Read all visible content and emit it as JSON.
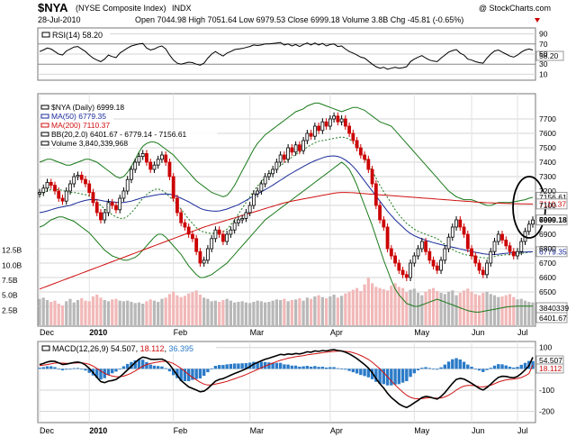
{
  "header": {
    "symbol": "$NYA",
    "name": "(NYSE Composite Index)",
    "exchange": "INDX",
    "date": "28-Jul-2010",
    "ohlc": "Open 7044.98  High 7051.64  Low 6979.53  Close 6999.18  Volume 3.8B  Chg -45.81 (-0.65%)",
    "watermark": "@ StockCharts.com"
  },
  "rsi_panel": {
    "legend": "RSI(14) 58.20",
    "last_label": "58.20",
    "axis_ticks": [
      "90",
      "70",
      "50",
      "30",
      "10"
    ]
  },
  "price_panel": {
    "legend": [
      {
        "text": "$NYA (Daily) 6999.18",
        "color": "#000000"
      },
      {
        "text": "MA(50) 6779.35",
        "color": "#1a2a9a"
      },
      {
        "text": "MA(200) 7110.37",
        "color": "#d01010"
      },
      {
        "text": "BB(20,2.0) 6401.67 - 6779.14 - 7156.61",
        "color": "#000000"
      },
      {
        "text": "Volume 3,840,339,968",
        "color": "#000000"
      }
    ],
    "right_labels": [
      {
        "text": "7156.61",
        "value": 7156.61,
        "bg": "#ffffff",
        "fg": "#000000"
      },
      {
        "text": "7110.37",
        "value": 7110.37,
        "bg": "#ffffff",
        "fg": "#d01010"
      },
      {
        "text": "6999.18",
        "value": 6999.18,
        "bg": "#ffffff",
        "fg": "#000000",
        "bold": true
      },
      {
        "text": "6779.35",
        "value": 6779.35,
        "bg": "#ffffff",
        "fg": "#1a2a9a"
      }
    ],
    "volume_labels": [
      "3840339",
      "6401.67"
    ],
    "left_volume_ticks": [
      "12.5B",
      "10.0B",
      "7.5B",
      "5.0B",
      "2.5B"
    ],
    "price_ticks": [
      "7700",
      "7600",
      "7500",
      "7400",
      "7300",
      "7200",
      "7100",
      "7000",
      "6900",
      "6800",
      "6700",
      "6600",
      "6500",
      "6400"
    ]
  },
  "macd_panel": {
    "legend_prefix": "MACD(12,26,9)",
    "macd_value": "54.507",
    "signal_value": "18.112",
    "hist_value": "36.395",
    "right_labels": [
      "54.507",
      "18.112"
    ],
    "axis_ticks": [
      "100",
      "0",
      "-100",
      "-200"
    ]
  },
  "x_axis": {
    "price_months": [
      "Dec",
      "2010",
      "Feb",
      "Mar",
      "Apr",
      "May",
      "Jun",
      "Jul"
    ],
    "macd_months": [
      "Dec",
      "2010",
      "Feb",
      "Mar",
      "Apr",
      "May",
      "Jun",
      "Jul"
    ]
  },
  "chart_data": {
    "type": "candlestick",
    "price_range": [
      6350,
      7800
    ],
    "price_close": [
      7190,
      7220,
      7260,
      7240,
      7200,
      7150,
      7130,
      7200,
      7250,
      7300,
      7310,
      7280,
      7250,
      7190,
      7120,
      7050,
      7000,
      7050,
      7120,
      7100,
      7070,
      7150,
      7200,
      7280,
      7350,
      7400,
      7440,
      7460,
      7400,
      7350,
      7380,
      7420,
      7450,
      7400,
      7300,
      7150,
      7050,
      6980,
      6950,
      6900,
      6870,
      6780,
      6700,
      6720,
      6800,
      6870,
      6930,
      6900,
      6850,
      6900,
      6930,
      6980,
      7000,
      7010,
      7050,
      7100,
      7180,
      7200,
      7250,
      7300,
      7320,
      7350,
      7400,
      7450,
      7420,
      7500,
      7470,
      7520,
      7480,
      7550,
      7600,
      7580,
      7650,
      7620,
      7680,
      7650,
      7700,
      7720,
      7680,
      7700,
      7650,
      7600,
      7550,
      7500,
      7450,
      7420,
      7350,
      7250,
      7100,
      7000,
      6950,
      6800,
      6750,
      6700,
      6650,
      6620,
      6600,
      6700,
      6750,
      6800,
      6850,
      6780,
      6720,
      6680,
      6650,
      6720,
      6800,
      6880,
      6950,
      7000,
      6950,
      6900,
      6800,
      6750,
      6700,
      6650,
      6620,
      6700,
      6780,
      6850,
      6900,
      6860,
      6820,
      6780,
      6750,
      6780,
      6850,
      6920,
      6970,
      6999
    ],
    "ma50": [
      7050,
      7055,
      7062,
      7070,
      7078,
      7085,
      7090,
      7095,
      7100,
      7110,
      7120,
      7128,
      7135,
      7140,
      7142,
      7140,
      7135,
      7130,
      7128,
      7125,
      7122,
      7120,
      7120,
      7125,
      7130,
      7138,
      7146,
      7155,
      7160,
      7165,
      7170,
      7175,
      7178,
      7180,
      7178,
      7172,
      7162,
      7150,
      7138,
      7125,
      7110,
      7095,
      7080,
      7070,
      7065,
      7062,
      7060,
      7062,
      7068,
      7075,
      7085,
      7095,
      7105,
      7120,
      7135,
      7150,
      7165,
      7180,
      7195,
      7210,
      7225,
      7240,
      7258,
      7275,
      7292,
      7310,
      7325,
      7340,
      7355,
      7370,
      7385,
      7398,
      7410,
      7420,
      7430,
      7438,
      7442,
      7444,
      7440,
      7430,
      7415,
      7395,
      7370,
      7340,
      7305,
      7270,
      7235,
      7200,
      7165,
      7130,
      7095,
      7060,
      7030,
      7000,
      6975,
      6950,
      6925,
      6905,
      6890,
      6878,
      6868,
      6858,
      6850,
      6842,
      6835,
      6828,
      6822,
      6816,
      6810,
      6805,
      6798,
      6792,
      6786,
      6780,
      6775,
      6770,
      6765,
      6762,
      6760,
      6760,
      6762,
      6765,
      6768,
      6770,
      6772,
      6774,
      6776,
      6777,
      6778,
      6779
    ],
    "ma200": [
      6520,
      6530,
      6540,
      6550,
      6560,
      6570,
      6580,
      6590,
      6600,
      6610,
      6620,
      6630,
      6640,
      6650,
      6660,
      6670,
      6680,
      6690,
      6700,
      6710,
      6720,
      6730,
      6740,
      6750,
      6760,
      6770,
      6780,
      6790,
      6800,
      6810,
      6820,
      6830,
      6840,
      6850,
      6860,
      6870,
      6880,
      6890,
      6900,
      6910,
      6920,
      6930,
      6940,
      6950,
      6958,
      6966,
      6974,
      6982,
      6990,
      6998,
      7006,
      7014,
      7022,
      7030,
      7038,
      7046,
      7054,
      7062,
      7070,
      7078,
      7086,
      7094,
      7102,
      7110,
      7118,
      7124,
      7130,
      7135,
      7140,
      7145,
      7150,
      7155,
      7160,
      7165,
      7170,
      7175,
      7180,
      7185,
      7188,
      7190,
      7190,
      7189,
      7188,
      7186,
      7184,
      7182,
      7180,
      7178,
      7176,
      7174,
      7172,
      7170,
      7168,
      7166,
      7164,
      7162,
      7160,
      7158,
      7156,
      7154,
      7152,
      7150,
      7148,
      7146,
      7144,
      7142,
      7140,
      7138,
      7136,
      7134,
      7132,
      7130,
      7128,
      7126,
      7124,
      7122,
      7120,
      7119,
      7118,
      7117,
      7116,
      7115,
      7114,
      7113,
      7112,
      7112,
      7111,
      7111,
      7110,
      7110
    ],
    "bb_upper": [
      7400,
      7410,
      7420,
      7420,
      7410,
      7400,
      7390,
      7380,
      7380,
      7390,
      7400,
      7410,
      7420,
      7420,
      7410,
      7400,
      7380,
      7360,
      7340,
      7320,
      7300,
      7290,
      7300,
      7330,
      7370,
      7420,
      7470,
      7510,
      7530,
      7540,
      7540,
      7530,
      7510,
      7490,
      7470,
      7450,
      7420,
      7390,
      7360,
      7330,
      7300,
      7270,
      7250,
      7230,
      7210,
      7190,
      7180,
      7170,
      7160,
      7170,
      7200,
      7240,
      7290,
      7340,
      7390,
      7440,
      7490,
      7530,
      7560,
      7590,
      7610,
      7630,
      7650,
      7670,
      7690,
      7710,
      7730,
      7750,
      7760,
      7770,
      7790,
      7800,
      7810,
      7810,
      7800,
      7790,
      7780,
      7770,
      7760,
      7750,
      7760,
      7770,
      7780,
      7780,
      7770,
      7760,
      7740,
      7720,
      7700,
      7680,
      7670,
      7660,
      7650,
      7620,
      7590,
      7560,
      7530,
      7500,
      7470,
      7440,
      7410,
      7380,
      7350,
      7320,
      7290,
      7260,
      7230,
      7200,
      7180,
      7160,
      7150,
      7140,
      7140,
      7140,
      7130,
      7120,
      7110,
      7100,
      7100,
      7110,
      7120,
      7120,
      7120,
      7120,
      7125,
      7130,
      7135,
      7140,
      7150,
      7156
    ],
    "bb_lower": [
      6950,
      6960,
      6980,
      7000,
      7010,
      7020,
      7020,
      7010,
      7000,
      6990,
      6970,
      6950,
      6930,
      6910,
      6880,
      6850,
      6820,
      6790,
      6770,
      6750,
      6740,
      6730,
      6720,
      6720,
      6730,
      6740,
      6760,
      6790,
      6820,
      6850,
      6880,
      6900,
      6900,
      6880,
      6850,
      6820,
      6790,
      6760,
      6720,
      6680,
      6650,
      6620,
      6600,
      6600,
      6610,
      6620,
      6640,
      6660,
      6680,
      6700,
      6730,
      6760,
      6790,
      6820,
      6850,
      6880,
      6910,
      6940,
      6970,
      7000,
      7020,
      7040,
      7060,
      7080,
      7100,
      7120,
      7140,
      7160,
      7180,
      7200,
      7220,
      7240,
      7260,
      7280,
      7300,
      7320,
      7340,
      7360,
      7380,
      7400,
      7380,
      7350,
      7300,
      7240,
      7170,
      7100,
      7030,
      6960,
      6880,
      6800,
      6720,
      6650,
      6580,
      6520,
      6480,
      6450,
      6420,
      6410,
      6400,
      6400,
      6410,
      6420,
      6430,
      6440,
      6450,
      6440,
      6430,
      6420,
      6410,
      6400,
      6390,
      6380,
      6370,
      6365,
      6360,
      6360,
      6365,
      6370,
      6375,
      6380,
      6385,
      6390,
      6395,
      6398,
      6400,
      6401,
      6401,
      6401,
      6401,
      6401
    ],
    "volume_range": [
      0,
      15
    ],
    "volume": [
      4.4,
      4.6,
      4.2,
      3.9,
      4.1,
      3.6,
      3.3,
      4.0,
      4.4,
      3.8,
      4.2,
      4.5,
      4.1,
      4.0,
      4.8,
      5.1,
      4.6,
      4.2,
      4.0,
      4.3,
      4.4,
      4.1,
      4.0,
      4.1,
      3.9,
      3.7,
      3.8,
      3.6,
      4.0,
      4.3,
      4.1,
      3.9,
      4.4,
      4.6,
      5.2,
      5.6,
      5.0,
      4.7,
      4.9,
      5.3,
      5.5,
      5.8,
      5.1,
      4.6,
      4.4,
      4.0,
      4.1,
      3.9,
      4.2,
      4.4,
      4.1,
      3.8,
      3.9,
      4.0,
      3.8,
      3.7,
      3.9,
      4.1,
      4.0,
      3.8,
      3.9,
      4.1,
      4.3,
      4.2,
      4.4,
      4.0,
      4.2,
      4.3,
      4.5,
      4.1,
      4.6,
      4.4,
      4.8,
      5.0,
      4.7,
      4.5,
      4.8,
      5.1,
      4.6,
      4.9,
      5.3,
      5.6,
      5.9,
      6.2,
      5.7,
      6.8,
      7.9,
      7.0,
      6.4,
      6.2,
      6.0,
      5.8,
      6.6,
      7.0,
      6.4,
      6.2,
      5.5,
      5.9,
      6.1,
      5.4,
      5.0,
      5.6,
      6.0,
      6.2,
      5.7,
      5.4,
      5.2,
      5.6,
      5.8,
      5.0,
      5.4,
      5.8,
      6.1,
      5.6,
      5.2,
      5.0,
      5.4,
      5.6,
      5.2,
      5.0,
      4.7,
      4.8,
      5.0,
      5.2,
      4.7,
      4.3,
      4.4,
      4.1,
      3.9,
      3.8
    ],
    "rsi_range": [
      0,
      100
    ],
    "rsi": [
      55,
      58,
      62,
      60,
      55,
      50,
      48,
      56,
      60,
      64,
      65,
      60,
      55,
      48,
      42,
      38,
      35,
      40,
      48,
      45,
      43,
      52,
      57,
      62,
      66,
      68,
      70,
      71,
      62,
      58,
      60,
      64,
      66,
      60,
      48,
      38,
      32,
      30,
      32,
      34,
      33,
      30,
      28,
      32,
      42,
      50,
      55,
      50,
      46,
      52,
      55,
      59,
      60,
      61,
      63,
      65,
      68,
      67,
      68,
      70,
      70,
      71,
      72,
      73,
      68,
      70,
      66,
      69,
      65,
      69,
      72,
      68,
      72,
      68,
      71,
      66,
      69,
      70,
      65,
      66,
      60,
      55,
      52,
      48,
      44,
      42,
      36,
      30,
      25,
      22,
      24,
      20,
      22,
      24,
      22,
      23,
      25,
      35,
      40,
      44,
      47,
      42,
      38,
      36,
      35,
      42,
      48,
      54,
      57,
      59,
      52,
      48,
      40,
      38,
      35,
      33,
      32,
      42,
      50,
      56,
      58,
      54,
      50,
      46,
      44,
      48,
      54,
      58,
      60,
      58
    ],
    "macd_range": [
      -240,
      120
    ],
    "macd": [
      20,
      25,
      32,
      36,
      35,
      28,
      20,
      22,
      26,
      30,
      32,
      28,
      18,
      2,
      -18,
      -40,
      -60,
      -65,
      -58,
      -55,
      -50,
      -38,
      -22,
      -5,
      12,
      30,
      45,
      55,
      52,
      45,
      44,
      45,
      46,
      38,
      20,
      -5,
      -30,
      -55,
      -70,
      -85,
      -92,
      -100,
      -108,
      -105,
      -92,
      -75,
      -58,
      -50,
      -46,
      -38,
      -30,
      -22,
      -15,
      -8,
      0,
      10,
      22,
      30,
      38,
      45,
      50,
      56,
      62,
      68,
      66,
      70,
      68,
      72,
      70,
      74,
      80,
      78,
      84,
      82,
      86,
      84,
      88,
      90,
      86,
      84,
      78,
      70,
      60,
      48,
      34,
      20,
      4,
      -18,
      -45,
      -70,
      -90,
      -115,
      -135,
      -150,
      -165,
      -175,
      -182,
      -172,
      -160,
      -148,
      -135,
      -130,
      -132,
      -138,
      -142,
      -130,
      -112,
      -90,
      -68,
      -50,
      -45,
      -48,
      -58,
      -68,
      -80,
      -92,
      -100,
      -88,
      -72,
      -55,
      -40,
      -35,
      -36,
      -40,
      -42,
      -36,
      -22,
      -5,
      15,
      54.5
    ],
    "macd_signal": [
      15,
      17,
      20,
      24,
      27,
      28,
      27,
      26,
      26,
      27,
      28,
      28,
      26,
      21,
      13,
      2,
      -10,
      -21,
      -29,
      -34,
      -37,
      -37,
      -34,
      -28,
      -20,
      -10,
      1,
      12,
      20,
      25,
      29,
      32,
      35,
      35,
      32,
      25,
      14,
      2,
      -12,
      -27,
      -40,
      -52,
      -63,
      -72,
      -76,
      -76,
      -72,
      -68,
      -64,
      -59,
      -53,
      -47,
      -40,
      -34,
      -27,
      -19,
      -11,
      -3,
      5,
      13,
      20,
      27,
      34,
      40,
      45,
      50,
      53,
      57,
      60,
      62,
      66,
      68,
      71,
      73,
      76,
      78,
      80,
      82,
      83,
      83,
      82,
      80,
      76,
      70,
      63,
      54,
      44,
      31,
      16,
      0,
      -18,
      -37,
      -57,
      -76,
      -93,
      -110,
      -124,
      -134,
      -139,
      -141,
      -140,
      -138,
      -136,
      -137,
      -138,
      -137,
      -132,
      -124,
      -113,
      -100,
      -89,
      -81,
      -78,
      -78,
      -80,
      -84,
      -85,
      -82,
      -77,
      -70,
      -62,
      -56,
      -52,
      -50,
      -48,
      -45,
      -41,
      -33,
      -22,
      18.1
    ],
    "macd_hist": [
      5,
      8,
      12,
      12,
      8,
      0,
      -7,
      -4,
      0,
      3,
      4,
      0,
      -8,
      -19,
      -31,
      -42,
      -50,
      -44,
      -29,
      -21,
      -13,
      -1,
      12,
      23,
      32,
      40,
      44,
      43,
      32,
      20,
      15,
      13,
      11,
      3,
      -12,
      -30,
      -44,
      -57,
      -58,
      -58,
      -52,
      -48,
      -45,
      -33,
      -16,
      1,
      14,
      18,
      18,
      21,
      23,
      25,
      25,
      26,
      27,
      29,
      33,
      33,
      33,
      32,
      30,
      29,
      28,
      28,
      21,
      20,
      15,
      15,
      10,
      12,
      14,
      10,
      13,
      9,
      10,
      6,
      8,
      8,
      3,
      1,
      -4,
      -10,
      -16,
      -22,
      -29,
      -34,
      -40,
      -49,
      -61,
      -70,
      -72,
      -78,
      -78,
      -74,
      -72,
      -65,
      -58,
      -38,
      -21,
      -7,
      5,
      8,
      4,
      -1,
      -4,
      7,
      20,
      34,
      45,
      50,
      44,
      33,
      20,
      10,
      -2,
      -8,
      -15,
      -6,
      5,
      15,
      22,
      21,
      16,
      10,
      6,
      9,
      19,
      28,
      37,
      36.4
    ],
    "macd_hist_color": "#2b7bc8",
    "bar_up_color": "#000000",
    "bar_down_color": "#cc0000",
    "volume_up_color": "#b8b8b8",
    "volume_down_color": "#f2b8b8"
  }
}
